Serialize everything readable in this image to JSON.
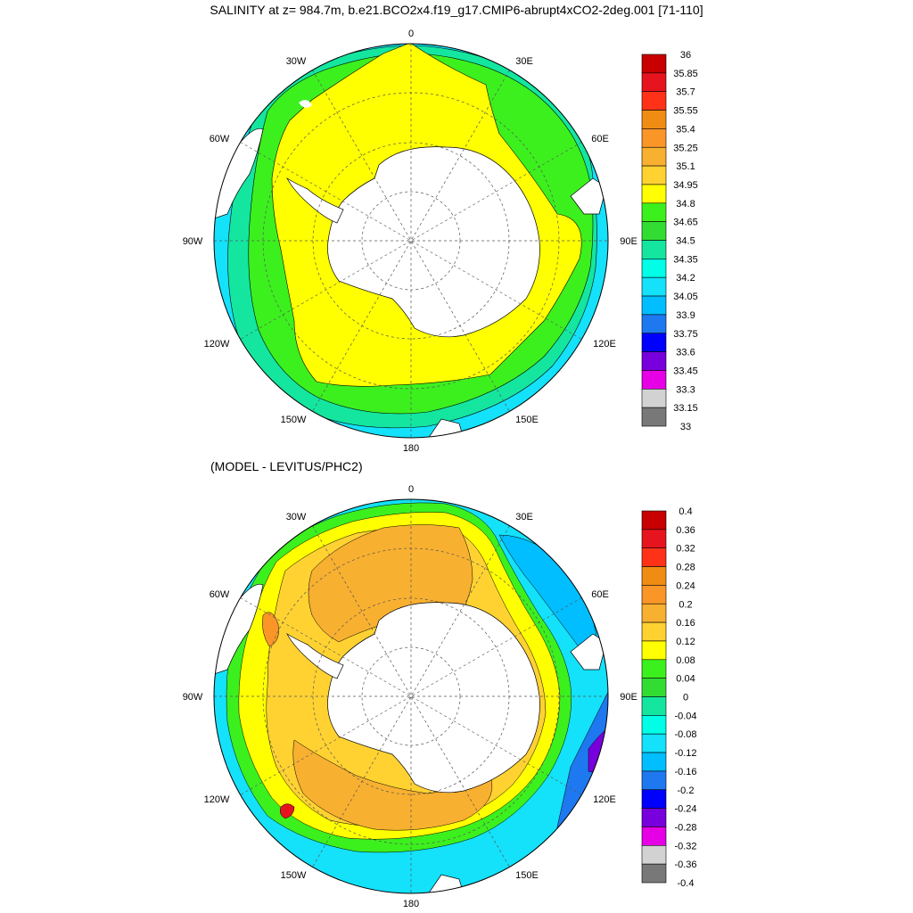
{
  "title": "SALINITY at z= 984.7m, b.e21.BCO2x4.f19_g17.CMIP6-abrupt4xCO2-2deg.001 [71-110]",
  "subtitle": "(MODEL - LEVITUS/PHC2)",
  "longitude_labels": {
    "lon_0": "0",
    "lon_30e": "30E",
    "lon_60e": "60E",
    "lon_90e": "90E",
    "lon_120e": "120E",
    "lon_150e": "150E",
    "lon_180": "180",
    "lon_150w": "150W",
    "lon_120w": "120W",
    "lon_90w": "90W",
    "lon_60w": "60W",
    "lon_30w": "30W"
  },
  "top_map": {
    "colorbar_labels": [
      "36",
      "35.85",
      "35.7",
      "35.55",
      "35.4",
      "35.25",
      "35.1",
      "34.95",
      "34.8",
      "34.65",
      "34.5",
      "34.35",
      "34.2",
      "34.05",
      "33.9",
      "33.75",
      "33.6",
      "33.45",
      "33.3",
      "33.15",
      "33"
    ],
    "colorbar_colors": [
      "#c80000",
      "#e6141e",
      "#ff3218",
      "#f08c14",
      "#fa9628",
      "#f8b030",
      "#ffd232",
      "#ffff00",
      "#3cf01e",
      "#32dc32",
      "#14e6a0",
      "#00ffe6",
      "#14e1fa",
      "#00beff",
      "#1e78f0",
      "#0000ff",
      "#7800dc",
      "#e600e6",
      "#d2d2d2",
      "#787878"
    ]
  },
  "bottom_map": {
    "colorbar_labels": [
      "0.4",
      "0.36",
      "0.32",
      "0.28",
      "0.24",
      "0.2",
      "0.16",
      "0.12",
      "0.08",
      "0.04",
      "0",
      "-0.04",
      "-0.08",
      "-0.12",
      "-0.16",
      "-0.2",
      "-0.24",
      "-0.28",
      "-0.32",
      "-0.36",
      "-0.4"
    ],
    "colorbar_colors": [
      "#c80000",
      "#e6141e",
      "#ff3218",
      "#f08c14",
      "#fa9628",
      "#f8b030",
      "#ffd232",
      "#ffff00",
      "#3cf01e",
      "#32dc32",
      "#14e6a0",
      "#00ffe6",
      "#14e1fa",
      "#00beff",
      "#1e78f0",
      "#0000ff",
      "#7800dc",
      "#e600e6",
      "#d2d2d2",
      "#787878"
    ]
  }
}
